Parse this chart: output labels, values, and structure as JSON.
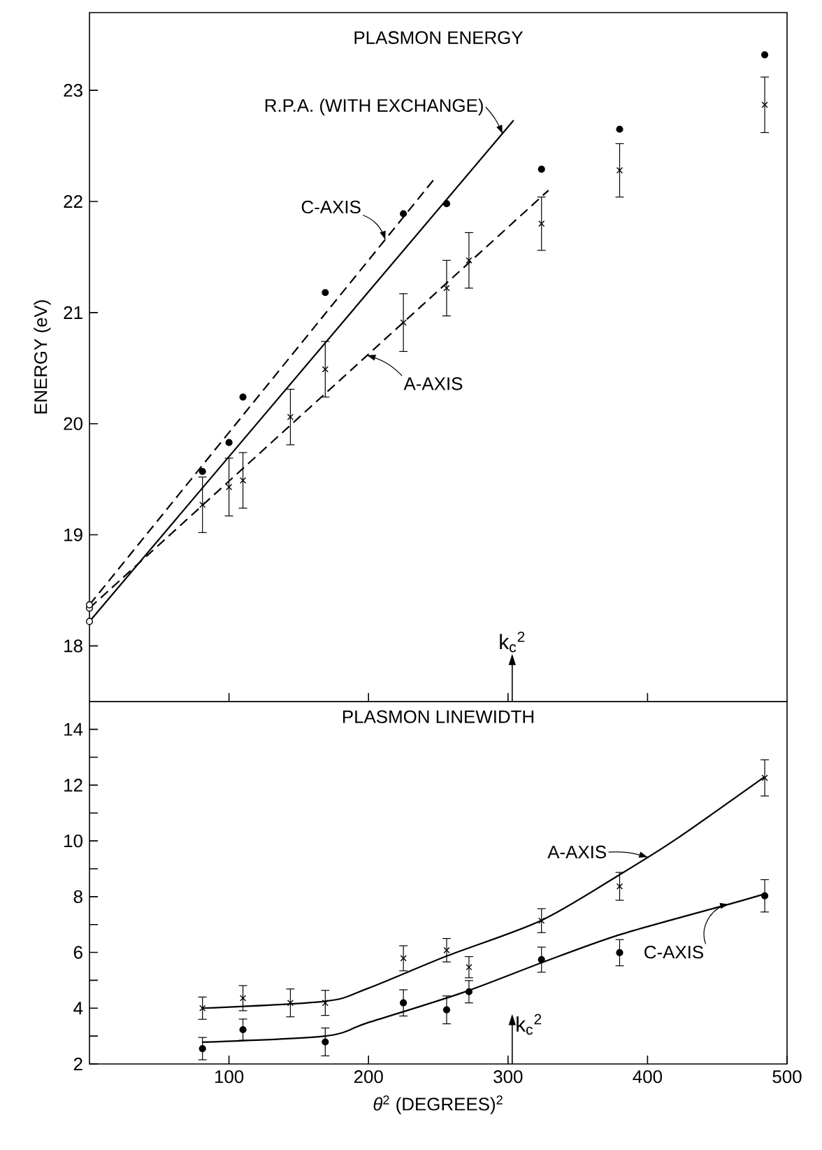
{
  "chart_data": [
    {
      "type": "scatter",
      "title": "PLASMON ENERGY",
      "ylabel": "ENERGY (eV)",
      "xlim": [
        0,
        500
      ],
      "xticks": [
        100,
        200,
        300,
        400
      ],
      "ylim": [
        17.5,
        23.7
      ],
      "yticks": [
        18,
        19,
        20,
        21,
        22,
        23
      ],
      "tick_labels": "y",
      "series": [
        {
          "marker": "circle",
          "color": "#000000",
          "x": [
            81,
            100,
            110,
            169,
            225,
            256,
            324,
            380,
            484
          ],
          "values": [
            19.57,
            19.83,
            20.24,
            21.18,
            21.89,
            21.98,
            22.29,
            22.65,
            23.32
          ]
        },
        {
          "marker": "cross",
          "color": "#000000",
          "x": [
            81,
            100,
            110,
            144,
            169,
            225,
            256,
            272,
            324,
            380,
            484
          ],
          "values": [
            19.27,
            19.43,
            19.49,
            20.06,
            20.49,
            20.91,
            21.22,
            21.47,
            21.8,
            22.28,
            22.87
          ],
          "errors": [
            0.25,
            0.26,
            0.25,
            0.25,
            0.25,
            0.26,
            0.25,
            0.25,
            0.24,
            0.24,
            0.25
          ]
        },
        {
          "type": "line",
          "name": "R.P.A. (WITH EXCHANGE)",
          "line_style": "solid",
          "color": "#000000",
          "x": [
            0,
            304
          ],
          "values": [
            18.22,
            22.73
          ]
        },
        {
          "type": "line",
          "name": "C-AXIS",
          "line_style": "dashed",
          "color": "#000000",
          "x": [
            0,
            247
          ],
          "values": [
            18.37,
            22.2
          ]
        },
        {
          "type": "line",
          "name": "A-AXIS",
          "line_style": "dashed",
          "color": "#000000",
          "x": [
            0,
            329
          ],
          "values": [
            18.34,
            22.1
          ]
        },
        {
          "marker": "circle",
          "color": "#ffffff",
          "x": [
            0,
            0,
            0
          ],
          "values": [
            18.22,
            18.34,
            18.37
          ]
        }
      ],
      "ref_lines": [
        {
          "axis": "x",
          "value": 303,
          "label": "k$_{c}$$^{2}$"
        }
      ]
    },
    {
      "type": "scatter",
      "title": "PLASMON LINEWIDTH",
      "xlabel": "*θ*$^{2}$ (DEGREES)$^{2}$",
      "xlim": [
        0,
        500
      ],
      "xticks": [
        100,
        200,
        300,
        400,
        500
      ],
      "ylim": [
        2,
        15
      ],
      "yticks": [
        2,
        {
          "value": 3,
          "label": null
        },
        4,
        {
          "value": 5,
          "label": null
        },
        6,
        {
          "value": 7,
          "label": null
        },
        8,
        {
          "value": 9,
          "label": null
        },
        10,
        {
          "value": 11,
          "label": null
        },
        12,
        {
          "value": 13,
          "label": null
        },
        14
      ],
      "series": [
        {
          "marker": "cross",
          "color": "#000000",
          "x": [
            81,
            110,
            144,
            169,
            225,
            256,
            272,
            324,
            380,
            484
          ],
          "values": [
            4.0,
            4.36,
            4.19,
            4.19,
            5.79,
            6.08,
            5.47,
            7.14,
            8.37,
            12.26
          ],
          "errors": [
            0.4,
            0.45,
            0.5,
            0.45,
            0.45,
            0.42,
            0.38,
            0.43,
            0.5,
            0.65
          ]
        },
        {
          "marker": "circle",
          "color": "#000000",
          "x": [
            81,
            110,
            169,
            225,
            256,
            272,
            324,
            380,
            484
          ],
          "values": [
            2.55,
            3.23,
            2.79,
            4.19,
            3.94,
            4.59,
            5.74,
            5.99,
            8.03
          ],
          "errors": [
            0.4,
            0.38,
            0.5,
            0.47,
            0.5,
            0.4,
            0.45,
            0.47,
            0.58
          ]
        },
        {
          "type": "line",
          "name": "A-AXIS",
          "line_style": "solid",
          "color": "#000000",
          "x": [
            81,
            169,
            199,
            256,
            324,
            382,
            421,
            484
          ],
          "values": [
            4.0,
            4.25,
            4.7,
            5.87,
            7.15,
            8.85,
            10.08,
            12.3
          ]
        },
        {
          "type": "line",
          "name": "C-AXIS",
          "line_style": "solid",
          "color": "#000000",
          "x": [
            81,
            169,
            199,
            267,
            324,
            381,
            462,
            484
          ],
          "values": [
            2.78,
            3.0,
            3.47,
            4.55,
            5.63,
            6.65,
            7.78,
            8.1
          ]
        }
      ],
      "ref_lines": [
        {
          "axis": "x",
          "value": 303,
          "label": "k$_{c}$$^{2}$"
        }
      ]
    }
  ]
}
